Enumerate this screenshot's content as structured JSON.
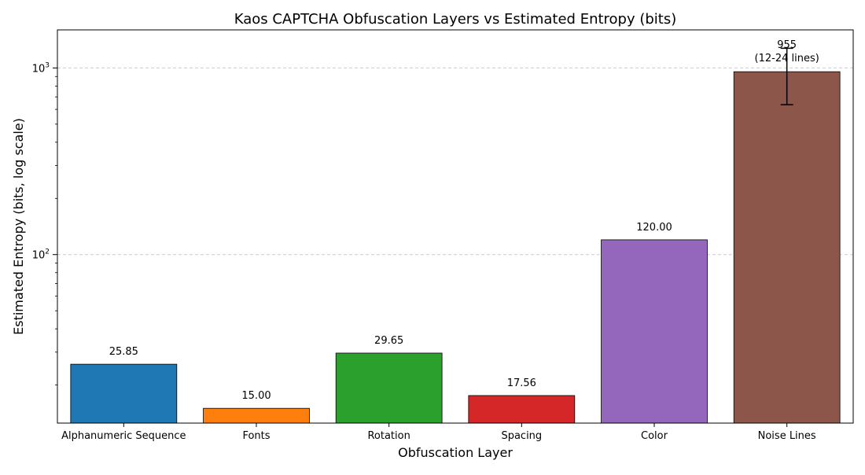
{
  "chart_data": {
    "type": "bar",
    "title": "Kaos CAPTCHA Obfuscation Layers vs Estimated Entropy (bits)",
    "xlabel": "Obfuscation Layer",
    "ylabel": "Estimated Entropy (bits, log scale)",
    "yscale": "log",
    "ylim": [
      12.5,
      1600
    ],
    "grid": "y-major-dashed",
    "categories": [
      "Alphanumeric Sequence",
      "Fonts",
      "Rotation",
      "Spacing",
      "Color",
      "Noise Lines"
    ],
    "values": [
      25.85,
      15.0,
      29.65,
      17.56,
      120.0,
      955
    ],
    "value_labels": [
      "25.85",
      "15.00",
      "29.65",
      "17.56",
      "120.00",
      "955"
    ],
    "extra_label": {
      "category": "Noise Lines",
      "text": "(12-24 lines)"
    },
    "error_bar": {
      "category": "Noise Lines",
      "low": 636,
      "high": 1275
    },
    "colors": [
      "#1f77b4",
      "#ff7f0e",
      "#2ca02c",
      "#d62728",
      "#9467bd",
      "#8c564b"
    ],
    "y_ticks": [
      {
        "value": 100,
        "base": "10",
        "exp": "2"
      },
      {
        "value": 1000,
        "base": "10",
        "exp": "3"
      }
    ]
  }
}
